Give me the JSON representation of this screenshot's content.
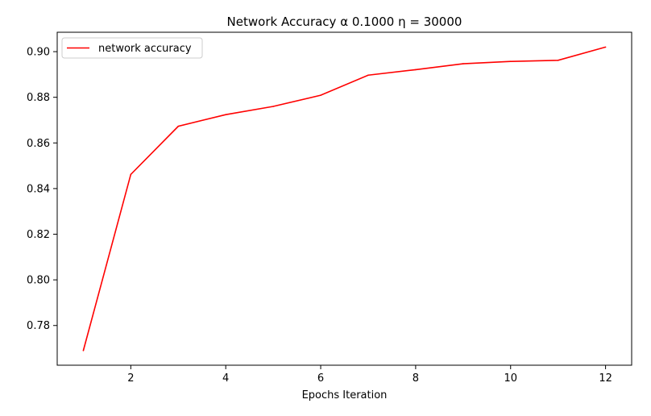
{
  "chart_data": {
    "type": "line",
    "title": "Network Accuracy α 0.1000 η = 30000",
    "xlabel": "Epochs Iteration",
    "ylabel": "",
    "xlim": [
      0.45,
      12.55
    ],
    "ylim": [
      0.7626,
      0.9085
    ],
    "xticks": [
      2,
      4,
      6,
      8,
      10,
      12
    ],
    "yticks": [
      0.78,
      0.8,
      0.82,
      0.84,
      0.86,
      0.88,
      0.9
    ],
    "xtick_labels": [
      "2",
      "4",
      "6",
      "8",
      "10",
      "12"
    ],
    "ytick_labels": [
      "0.78",
      "0.80",
      "0.82",
      "0.84",
      "0.86",
      "0.88",
      "0.90"
    ],
    "grid": false,
    "legend_position": "top-left",
    "x": [
      1,
      2,
      3,
      4,
      5,
      6,
      7,
      8,
      9,
      10,
      11,
      12
    ],
    "series": [
      {
        "name": "network accuracy",
        "color": "#ff0000",
        "values": [
          0.769,
          0.8462,
          0.8673,
          0.8724,
          0.876,
          0.8809,
          0.8897,
          0.8921,
          0.8947,
          0.8957,
          0.8962,
          0.902
        ]
      }
    ]
  }
}
